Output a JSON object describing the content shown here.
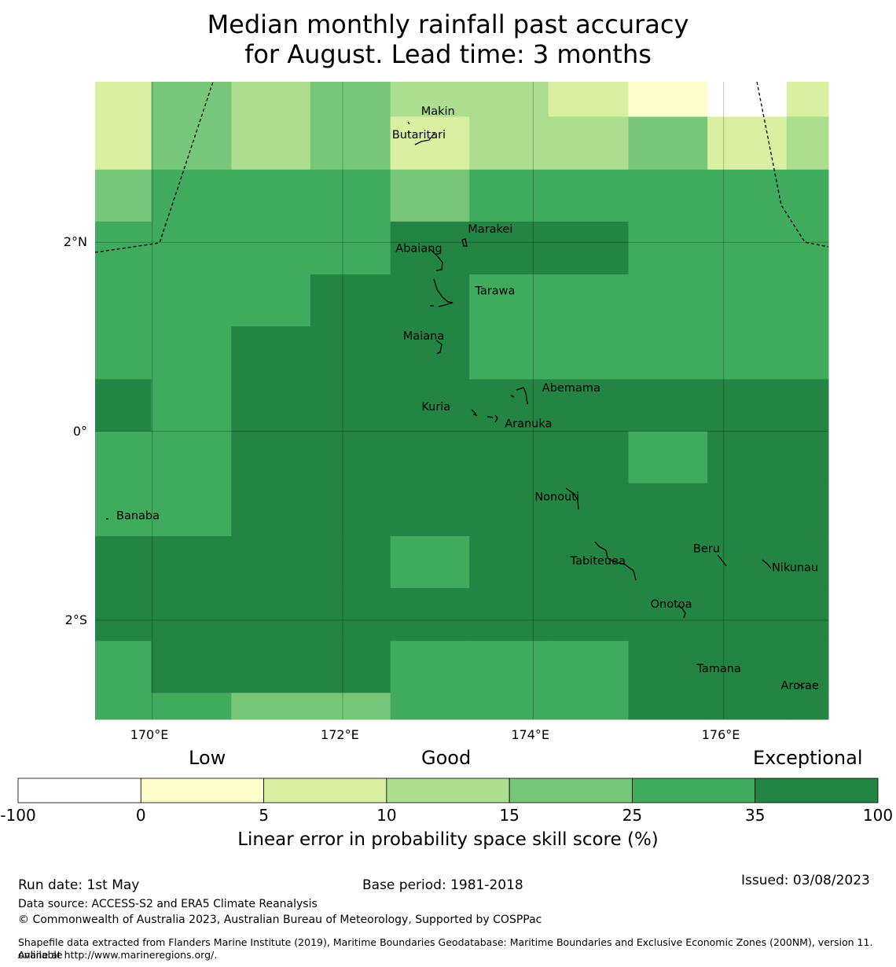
{
  "title_line1": "Median monthly rainfall past accuracy",
  "title_line2": "for August. Lead time: 3 months",
  "map": {
    "lon_range": [
      169.4,
      177.1
    ],
    "lat_range": [
      -3.05,
      3.7
    ],
    "lon_ticks": [
      {
        "value": 170,
        "label": "170°E"
      },
      {
        "value": 172,
        "label": "172°E"
      },
      {
        "value": 174,
        "label": "174°E"
      },
      {
        "value": 176,
        "label": "176°E"
      }
    ],
    "lat_ticks": [
      {
        "value": 2,
        "label": "2°N"
      },
      {
        "value": 0,
        "label": "0°"
      },
      {
        "value": -2,
        "label": "2°S"
      }
    ],
    "grid_lon_edges": [
      169.4,
      169.99,
      170.83,
      171.66,
      172.5,
      173.33,
      174.16,
      175.0,
      175.83,
      176.66,
      177.1
    ],
    "grid_lat_edges": [
      3.7,
      3.33,
      2.77,
      2.22,
      1.66,
      1.11,
      0.55,
      0.0,
      -0.55,
      -1.11,
      -1.66,
      -2.22,
      -2.77,
      -3.05
    ],
    "grid_level_note": "-1: no data/below 0 (white); 0:0-5, 1:5-10, 2:10-15, 3:15-25, 4:25-35, 5:35-100",
    "skill_levels": [
      [
        1,
        3,
        2,
        3,
        2,
        2,
        1,
        0,
        -1,
        1
      ],
      [
        1,
        3,
        2,
        3,
        1,
        2,
        2,
        3,
        1,
        2
      ],
      [
        3,
        4,
        4,
        4,
        3,
        4,
        4,
        4,
        4,
        4
      ],
      [
        4,
        4,
        4,
        4,
        5,
        5,
        5,
        4,
        4,
        4
      ],
      [
        4,
        4,
        4,
        5,
        5,
        4,
        4,
        4,
        4,
        4
      ],
      [
        4,
        4,
        5,
        5,
        5,
        4,
        4,
        4,
        4,
        4
      ],
      [
        5,
        4,
        5,
        5,
        5,
        5,
        5,
        5,
        5,
        5
      ],
      [
        4,
        4,
        5,
        5,
        5,
        5,
        5,
        4,
        5,
        5
      ],
      [
        4,
        4,
        5,
        5,
        5,
        5,
        5,
        5,
        5,
        5
      ],
      [
        5,
        5,
        5,
        5,
        4,
        5,
        5,
        5,
        5,
        5
      ],
      [
        5,
        5,
        5,
        5,
        5,
        5,
        5,
        5,
        5,
        5
      ],
      [
        4,
        5,
        5,
        5,
        4,
        4,
        4,
        5,
        5,
        5
      ],
      [
        4,
        4,
        3,
        3,
        4,
        4,
        4,
        5,
        5,
        5
      ]
    ],
    "places": [
      {
        "name": "Makin",
        "lon": 173.0,
        "lat": 3.35
      },
      {
        "name": "Butaritari",
        "lon": 172.8,
        "lat": 3.1
      },
      {
        "name": "Marakei",
        "lon": 173.55,
        "lat": 2.1
      },
      {
        "name": "Abaiang",
        "lon": 172.8,
        "lat": 1.9
      },
      {
        "name": "Tarawa",
        "lon": 173.6,
        "lat": 1.45
      },
      {
        "name": "Maiana",
        "lon": 172.85,
        "lat": 0.97
      },
      {
        "name": "Abemama",
        "lon": 174.4,
        "lat": 0.42
      },
      {
        "name": "Kuria",
        "lon": 172.98,
        "lat": 0.22
      },
      {
        "name": "Aranuka",
        "lon": 173.95,
        "lat": 0.04
      },
      {
        "name": "Nonouti",
        "lon": 174.25,
        "lat": -0.73
      },
      {
        "name": "Banaba",
        "lon": 169.85,
        "lat": -0.93
      },
      {
        "name": "Beru",
        "lon": 175.82,
        "lat": -1.28
      },
      {
        "name": "Tabiteuea",
        "lon": 174.68,
        "lat": -1.41
      },
      {
        "name": "Nikunau",
        "lon": 176.75,
        "lat": -1.48
      },
      {
        "name": "Onotoa",
        "lon": 175.45,
        "lat": -1.87
      },
      {
        "name": "Tamana",
        "lon": 175.95,
        "lat": -2.55
      },
      {
        "name": "Arorae",
        "lon": 176.8,
        "lat": -2.73
      }
    ]
  },
  "colors": {
    "levels": [
      "#ffffcc",
      "#d9f0a3",
      "#addd8e",
      "#78c679",
      "#41ab5d",
      "#238443"
    ],
    "nodata": "#ffffff",
    "boundary": "#000000"
  },
  "legend": {
    "heading_low": "Low",
    "heading_good": "Good",
    "heading_exceptional": "Exceptional",
    "bins": [
      {
        "from": -100,
        "to": 0,
        "color": "#ffffff"
      },
      {
        "from": 0,
        "to": 5,
        "color": "#ffffcc"
      },
      {
        "from": 5,
        "to": 10,
        "color": "#d9f0a3"
      },
      {
        "from": 10,
        "to": 15,
        "color": "#addd8e"
      },
      {
        "from": 15,
        "to": 25,
        "color": "#78c679"
      },
      {
        "from": 25,
        "to": 35,
        "color": "#41ab5d"
      },
      {
        "from": 35,
        "to": 100,
        "color": "#238443"
      }
    ],
    "tick_labels": [
      "-100",
      "0",
      "5",
      "10",
      "15",
      "25",
      "35",
      "100"
    ],
    "axis_label": "Linear error in probability space skill score (%)"
  },
  "footer": {
    "run_date": "Run date: 1st May",
    "base_period": "Base period: 1981-2018",
    "issued": "Issued: 03/08/2023",
    "data_source": "Data source: ACCESS-S2 and ERA5 Climate Reanalysis",
    "copyright": "© Commonwealth of Australia 2023, Australian Bureau of Meteorology, Supported by COSPPac",
    "shapefile_line1": "Shapefile data extracted from Flanders Marine Institute (2019), Maritime Boundaries Geodatabase: Maritime Boundaries and Exclusive Economic Zones (200NM), version 11. Available",
    "shapefile_line2": "online at http://www.marineregions.org/."
  }
}
